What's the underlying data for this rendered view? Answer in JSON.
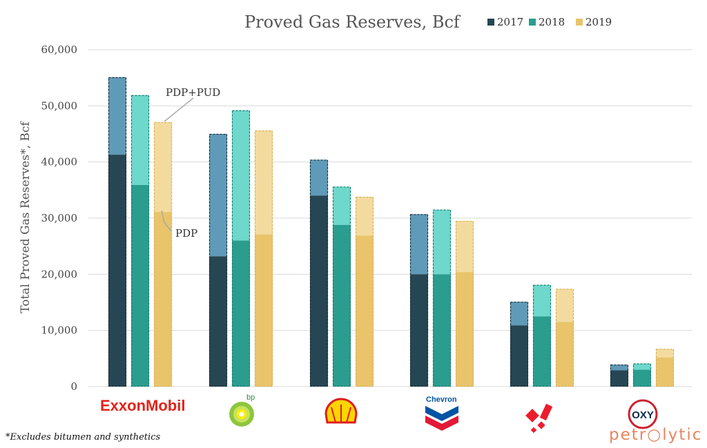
{
  "chart_data": {
    "type": "bar",
    "title": "Proved Gas Reserves, Bcf",
    "ylabel": "Total Proved Gas Reserves*, Bcf",
    "xlabel": "",
    "ylim": [
      0,
      60000
    ],
    "yticks": [
      "0",
      "10,000",
      "20,000",
      "30,000",
      "40,000",
      "50,000",
      "60,000"
    ],
    "ytick_values": [
      0,
      10000,
      20000,
      30000,
      40000,
      50000,
      60000
    ],
    "grid": true,
    "legend_placement": "top-right",
    "categories": [
      "ExxonMobil",
      "bp",
      "Shell",
      "Chevron",
      "Equinor",
      "OXY"
    ],
    "series": [
      {
        "name": "2017",
        "color": "#264653",
        "light_color": "#5f9bb8",
        "pdp": [
          41300,
          23200,
          34000,
          20000,
          10900,
          2900
        ],
        "total": [
          55100,
          45000,
          40400,
          30700,
          15100,
          3900
        ]
      },
      {
        "name": "2018",
        "color": "#2a9d8f",
        "light_color": "#6ed8cc",
        "pdp": [
          35900,
          26000,
          28800,
          20000,
          12500,
          3000
        ],
        "total": [
          51900,
          49200,
          35600,
          31500,
          18100,
          4100
        ]
      },
      {
        "name": "2019",
        "color": "#e9c46a",
        "light_color": "#f3dba0",
        "pdp": [
          31100,
          27100,
          26900,
          20400,
          11500,
          5200
        ],
        "total": [
          47100,
          45600,
          33800,
          29500,
          17400,
          6700
        ]
      }
    ],
    "annotations": {
      "pdp_pud": "PDP+PUD",
      "pdp": "PDP"
    }
  },
  "footnote": "*Excludes bitumen and synthetics",
  "brand": "petr○lytic",
  "logos": {
    "exxon": "ExxonMobil",
    "bp": "bp",
    "chevron": "Chevron",
    "oxy": "OXY"
  }
}
